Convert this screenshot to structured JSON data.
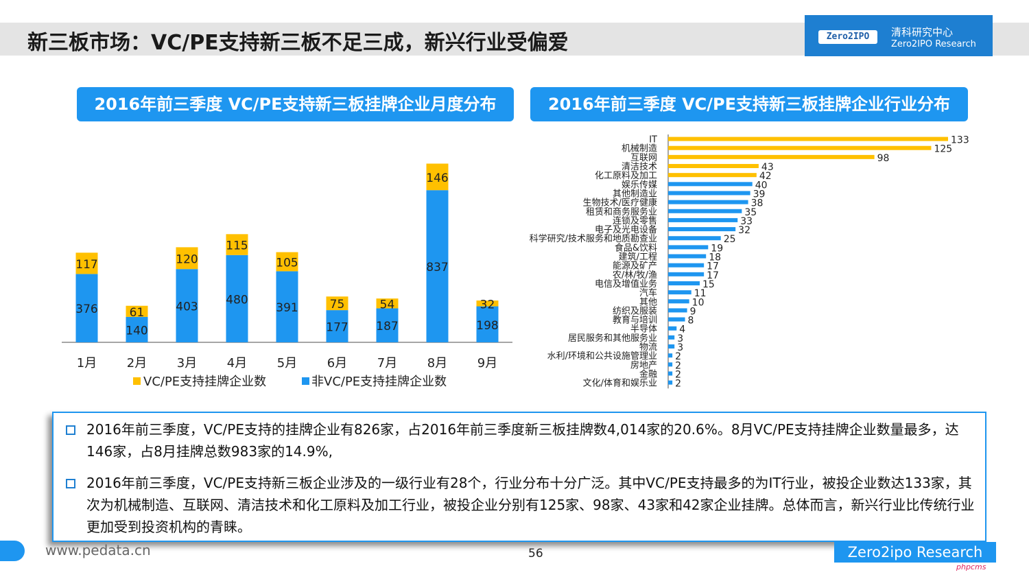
{
  "page": {
    "title": "新三板市场：VC/PE支持新三板不足三成，新兴行业受偏爱",
    "logo_badge": "Zero2IPO",
    "logo_cn": "清科研究中心",
    "logo_en": "Zero2IPO Research",
    "footer_url": "www.pedata.cn",
    "page_number": "56",
    "footer_brand": "Zero2ipo Research",
    "watermark": "phpcms"
  },
  "colors": {
    "vcpe": "#ffc000",
    "non_vcpe": "#1e96f0",
    "header": "#1e96f0"
  },
  "chart_data": [
    {
      "type": "bar",
      "stacked": true,
      "title": "2016年前三季度 VC/PE支持新三板挂牌企业月度分布",
      "categories": [
        "1月",
        "2月",
        "3月",
        "4月",
        "5月",
        "6月",
        "7月",
        "8月",
        "9月"
      ],
      "series": [
        {
          "name": "非VC/PE支持挂牌企业数",
          "values": [
            376,
            140,
            403,
            480,
            391,
            177,
            187,
            837,
            198
          ]
        },
        {
          "name": "VC/PE支持挂牌企业数",
          "values": [
            117,
            61,
            120,
            115,
            105,
            75,
            54,
            146,
            32
          ]
        }
      ],
      "ylim": [
        0,
        1000
      ],
      "grid": false,
      "legend": "bottom"
    },
    {
      "type": "bar",
      "orientation": "horizontal",
      "title": "2016年前三季度 VC/PE支持新三板挂牌企业行业分布",
      "categories": [
        "IT",
        "机械制造",
        "互联网",
        "清洁技术",
        "化工原料及加工",
        "娱乐传媒",
        "其他制造业",
        "生物技术/医疗健康",
        "租赁和商务服务业",
        "连锁及零售",
        "电子及光电设备",
        "科学研究/技术服务和地质勘查业",
        "食品&饮料",
        "建筑/工程",
        "能源及矿产",
        "农/林/牧/渔",
        "电信及增值业务",
        "汽车",
        "其他",
        "纺织及服装",
        "教育与培训",
        "半导体",
        "居民服务和其他服务业",
        "物流",
        "水利/环境和公共设施管理业",
        "房地产",
        "金融",
        "文化/体育和娱乐业"
      ],
      "values": [
        133,
        125,
        98,
        43,
        42,
        40,
        39,
        38,
        35,
        33,
        32,
        25,
        19,
        18,
        17,
        17,
        15,
        11,
        10,
        9,
        8,
        4,
        3,
        3,
        2,
        2,
        2,
        2
      ],
      "xlim": [
        0,
        140
      ],
      "grid": false
    }
  ],
  "summary": {
    "p1": "2016年前三季度，VC/PE支持的挂牌企业有826家，占2016年前三季度新三板挂牌数4,014家的20.6%。8月VC/PE支持挂牌企业数量最多，达146家，占8月挂牌总数983家的14.9%,",
    "p2": "2016年前三季度，VC/PE支持新三板企业涉及的一级行业有28个，行业分布十分广泛。其中VC/PE支持最多的为IT行业，被投企业数达133家，其次为机械制造、互联网、清洁技术和化工原料及加工行业，被投企业分别有125家、98家、43家和42家企业挂牌。总体而言，新兴行业比传统行业更加受到投资机构的青睐。"
  }
}
